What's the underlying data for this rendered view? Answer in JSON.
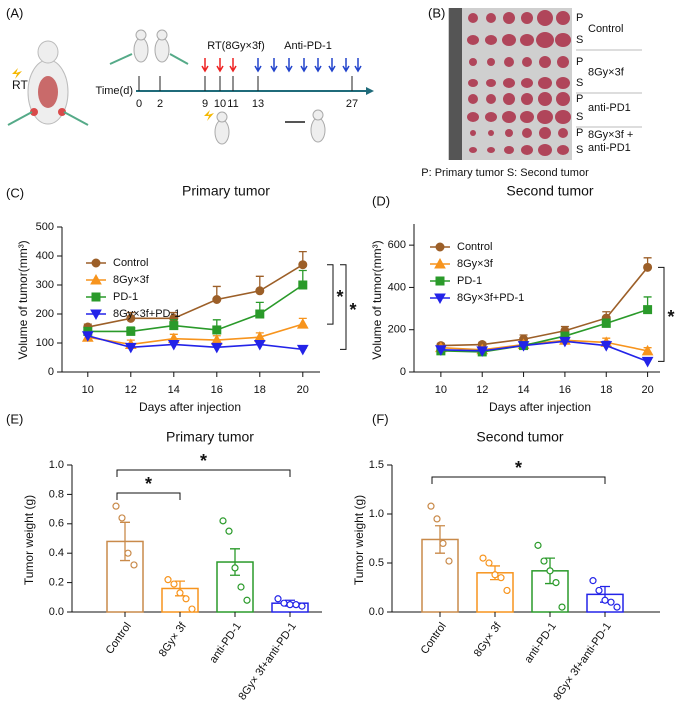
{
  "panel_a": {
    "label": "(A)",
    "rt_label": "RT",
    "axis_label": "Time(d)",
    "days": [
      0,
      2,
      9,
      10,
      11,
      13,
      27
    ],
    "rt_phase": "RT(8Gy×3f)",
    "drug_phase": "Anti-PD-1"
  },
  "panel_b": {
    "label": "(B)",
    "rows": [
      {
        "marks": [
          "P",
          "S"
        ],
        "label": [
          "Control"
        ]
      },
      {
        "marks": [
          "P",
          "S"
        ],
        "label": [
          "8Gy×3f"
        ]
      },
      {
        "marks": [
          "P",
          "S"
        ],
        "label": [
          "anti-PD1"
        ]
      },
      {
        "marks": [
          "P",
          "S"
        ],
        "label": [
          "8Gy×3f +",
          "anti-PD1"
        ]
      }
    ],
    "caption": "P: Primary tumor  S: Second tumor"
  },
  "chart_data": [
    {
      "panel": "(C)",
      "type": "line",
      "title": "Primary tumor",
      "x_label": "Days after injection",
      "y_label": "Volume of tumor(mm³)",
      "x": [
        10,
        12,
        14,
        16,
        18,
        20
      ],
      "xlim": [
        8.8,
        20.8
      ],
      "xticks": [
        10,
        12,
        14,
        16,
        18,
        20
      ],
      "ylim": [
        0,
        500
      ],
      "yticks": [
        0,
        100,
        200,
        300,
        400,
        500
      ],
      "series": [
        {
          "name": "Control",
          "color": "#9c5f28",
          "marker": "circle",
          "values": [
            155,
            185,
            185,
            250,
            280,
            370
          ],
          "errors": [
            10,
            20,
            20,
            45,
            50,
            45
          ]
        },
        {
          "name": "8Gy×3f",
          "color": "#f7941d",
          "marker": "triangle",
          "values": [
            120,
            95,
            115,
            110,
            120,
            165
          ],
          "errors": [
            8,
            15,
            15,
            15,
            15,
            20
          ]
        },
        {
          "name": "PD-1",
          "color": "#2a9a2a",
          "marker": "square",
          "values": [
            140,
            140,
            160,
            145,
            200,
            300
          ],
          "errors": [
            10,
            15,
            20,
            35,
            40,
            50
          ]
        },
        {
          "name": "8Gy×3f+PD-1",
          "color": "#2323e8",
          "marker": "triangle-down",
          "values": [
            125,
            85,
            95,
            85,
            95,
            78
          ],
          "errors": [
            5,
            8,
            10,
            8,
            8,
            5
          ]
        }
      ],
      "annotations": [
        "*",
        "*"
      ]
    },
    {
      "panel": "(D)",
      "type": "line",
      "title": "Second tumor",
      "x_label": "Days after injection",
      "y_label": "Volume of tumor(mm³)",
      "x": [
        10,
        12,
        14,
        16,
        18,
        20
      ],
      "xlim": [
        8.7,
        20.6
      ],
      "xticks": [
        10,
        12,
        14,
        16,
        18,
        20
      ],
      "ylim": [
        0,
        700
      ],
      "yticks": [
        0,
        200,
        400,
        600
      ],
      "series": [
        {
          "name": "Control",
          "color": "#9c5f28",
          "marker": "circle",
          "values": [
            125,
            130,
            155,
            195,
            255,
            495
          ],
          "errors": [
            10,
            10,
            20,
            20,
            30,
            45
          ]
        },
        {
          "name": "8Gy×3f",
          "color": "#f7941d",
          "marker": "triangle",
          "values": [
            115,
            105,
            130,
            150,
            140,
            100
          ],
          "errors": [
            5,
            5,
            10,
            10,
            20,
            15
          ]
        },
        {
          "name": "PD-1",
          "color": "#2a9a2a",
          "marker": "square",
          "values": [
            100,
            95,
            125,
            170,
            230,
            295
          ],
          "errors": [
            5,
            5,
            10,
            15,
            20,
            60
          ]
        },
        {
          "name": "8Gy×3f+PD-1",
          "color": "#2323e8",
          "marker": "triangle-down",
          "values": [
            105,
            100,
            125,
            145,
            125,
            50
          ],
          "errors": [
            5,
            5,
            10,
            15,
            20,
            10
          ]
        }
      ],
      "annotations": [
        "*"
      ]
    },
    {
      "panel": "(E)",
      "type": "bar",
      "title": "Primary tumor",
      "y_label": "Tumor weight (g)",
      "categories": [
        "Control",
        "8Gy× 3f",
        "anti-PD-1",
        "8Gy× 3f+anti-PD-1"
      ],
      "colors": [
        "#c98a4a",
        "#f7941d",
        "#2a9a2a",
        "#2323e8"
      ],
      "values": [
        0.48,
        0.16,
        0.34,
        0.06
      ],
      "errors": [
        0.13,
        0.05,
        0.09,
        0.02
      ],
      "points": [
        [
          0.72,
          0.64,
          0.4,
          0.32
        ],
        [
          0.22,
          0.19,
          0.13,
          0.09,
          0.02
        ],
        [
          0.62,
          0.55,
          0.3,
          0.17,
          0.08
        ],
        [
          0.09,
          0.06,
          0.05,
          0.05,
          0.04
        ]
      ],
      "ylim": [
        0,
        1.0
      ],
      "yticks": [
        {
          "value": 0,
          "label": "0.0"
        },
        0.2,
        0.4,
        0.6,
        0.8,
        {
          "value": 1,
          "label": "1.0"
        }
      ],
      "annotations": [
        "*",
        "*"
      ]
    },
    {
      "panel": "(F)",
      "type": "bar",
      "title": "Second tumor",
      "y_label": "Tumor weight (g)",
      "categories": [
        "Control",
        "8Gy× 3f",
        "anti-PD-1",
        "8Gy× 3f+anti-PD-1"
      ],
      "colors": [
        "#c98a4a",
        "#f7941d",
        "#2a9a2a",
        "#2323e8"
      ],
      "values": [
        0.74,
        0.4,
        0.42,
        0.18
      ],
      "errors": [
        0.14,
        0.07,
        0.13,
        0.08
      ],
      "points": [
        [
          1.08,
          0.95,
          0.7,
          0.52
        ],
        [
          0.55,
          0.5,
          0.38,
          0.35,
          0.22
        ],
        [
          0.68,
          0.52,
          0.42,
          0.3,
          0.05
        ],
        [
          0.32,
          0.22,
          0.12,
          0.1,
          0.05
        ]
      ],
      "ylim": [
        0,
        1.5
      ],
      "yticks": [
        {
          "value": 0,
          "label": "0.0"
        },
        0.5,
        {
          "value": 1,
          "label": "1.0"
        },
        1.5
      ],
      "annotations": [
        "*"
      ]
    }
  ]
}
